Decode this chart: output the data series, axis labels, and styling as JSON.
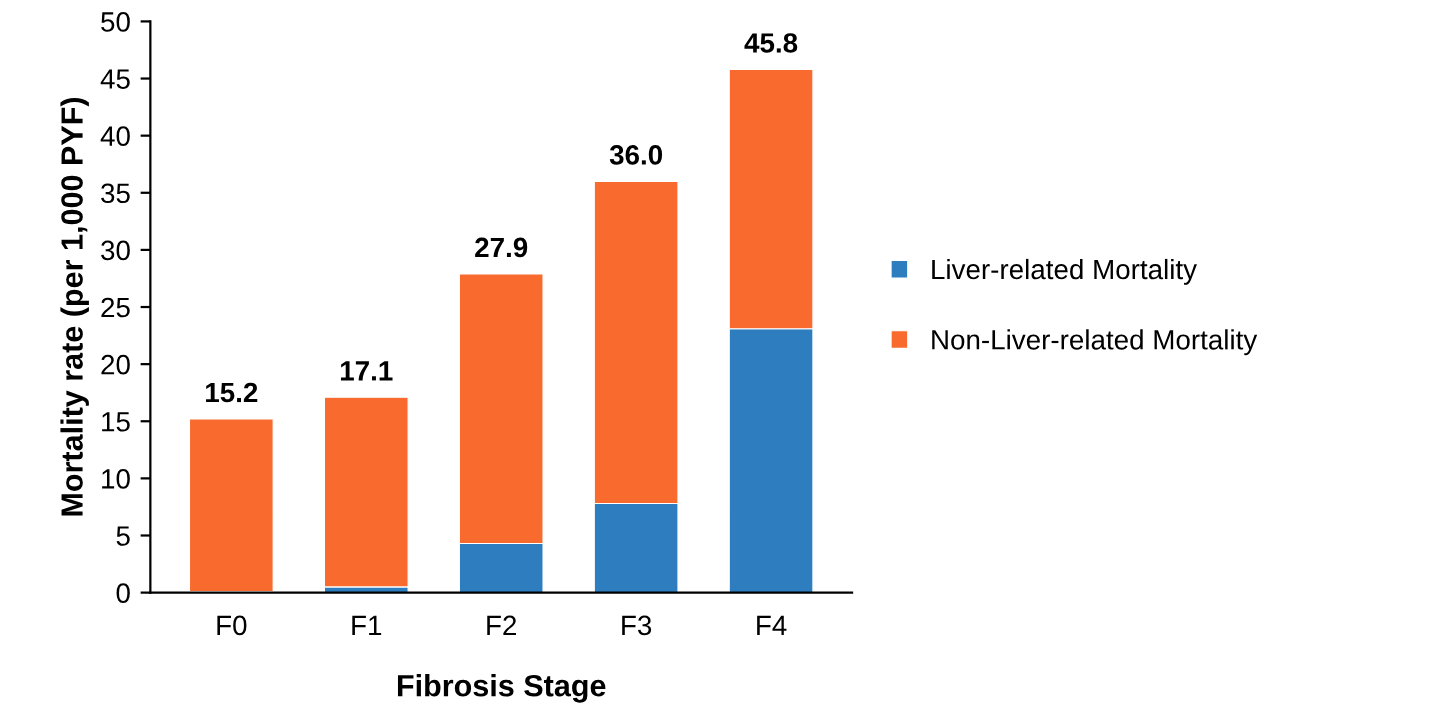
{
  "chart_data": {
    "type": "bar",
    "stacked": true,
    "xlabel": "Fibrosis Stage",
    "ylabel": "Mortality rate (per 1,000 PYF)",
    "categories": [
      "F0",
      "F1",
      "F2",
      "F3",
      "F4"
    ],
    "series": [
      {
        "name": "Liver-related Mortality",
        "color": "#2e7ebf",
        "values": [
          0.1,
          0.5,
          4.3,
          7.8,
          23.1
        ]
      },
      {
        "name": "Non-Liver-related Mortality",
        "color": "#f96a2e",
        "values": [
          15.1,
          16.6,
          23.6,
          28.2,
          22.7
        ]
      }
    ],
    "totals": [
      "15.2",
      "17.1",
      "27.9",
      "36.0",
      "45.8"
    ],
    "ylim": [
      0,
      50
    ],
    "yticks": [
      0,
      5,
      10,
      15,
      20,
      25,
      30,
      35,
      40,
      45,
      50
    ],
    "grid": false,
    "legend": "right"
  }
}
